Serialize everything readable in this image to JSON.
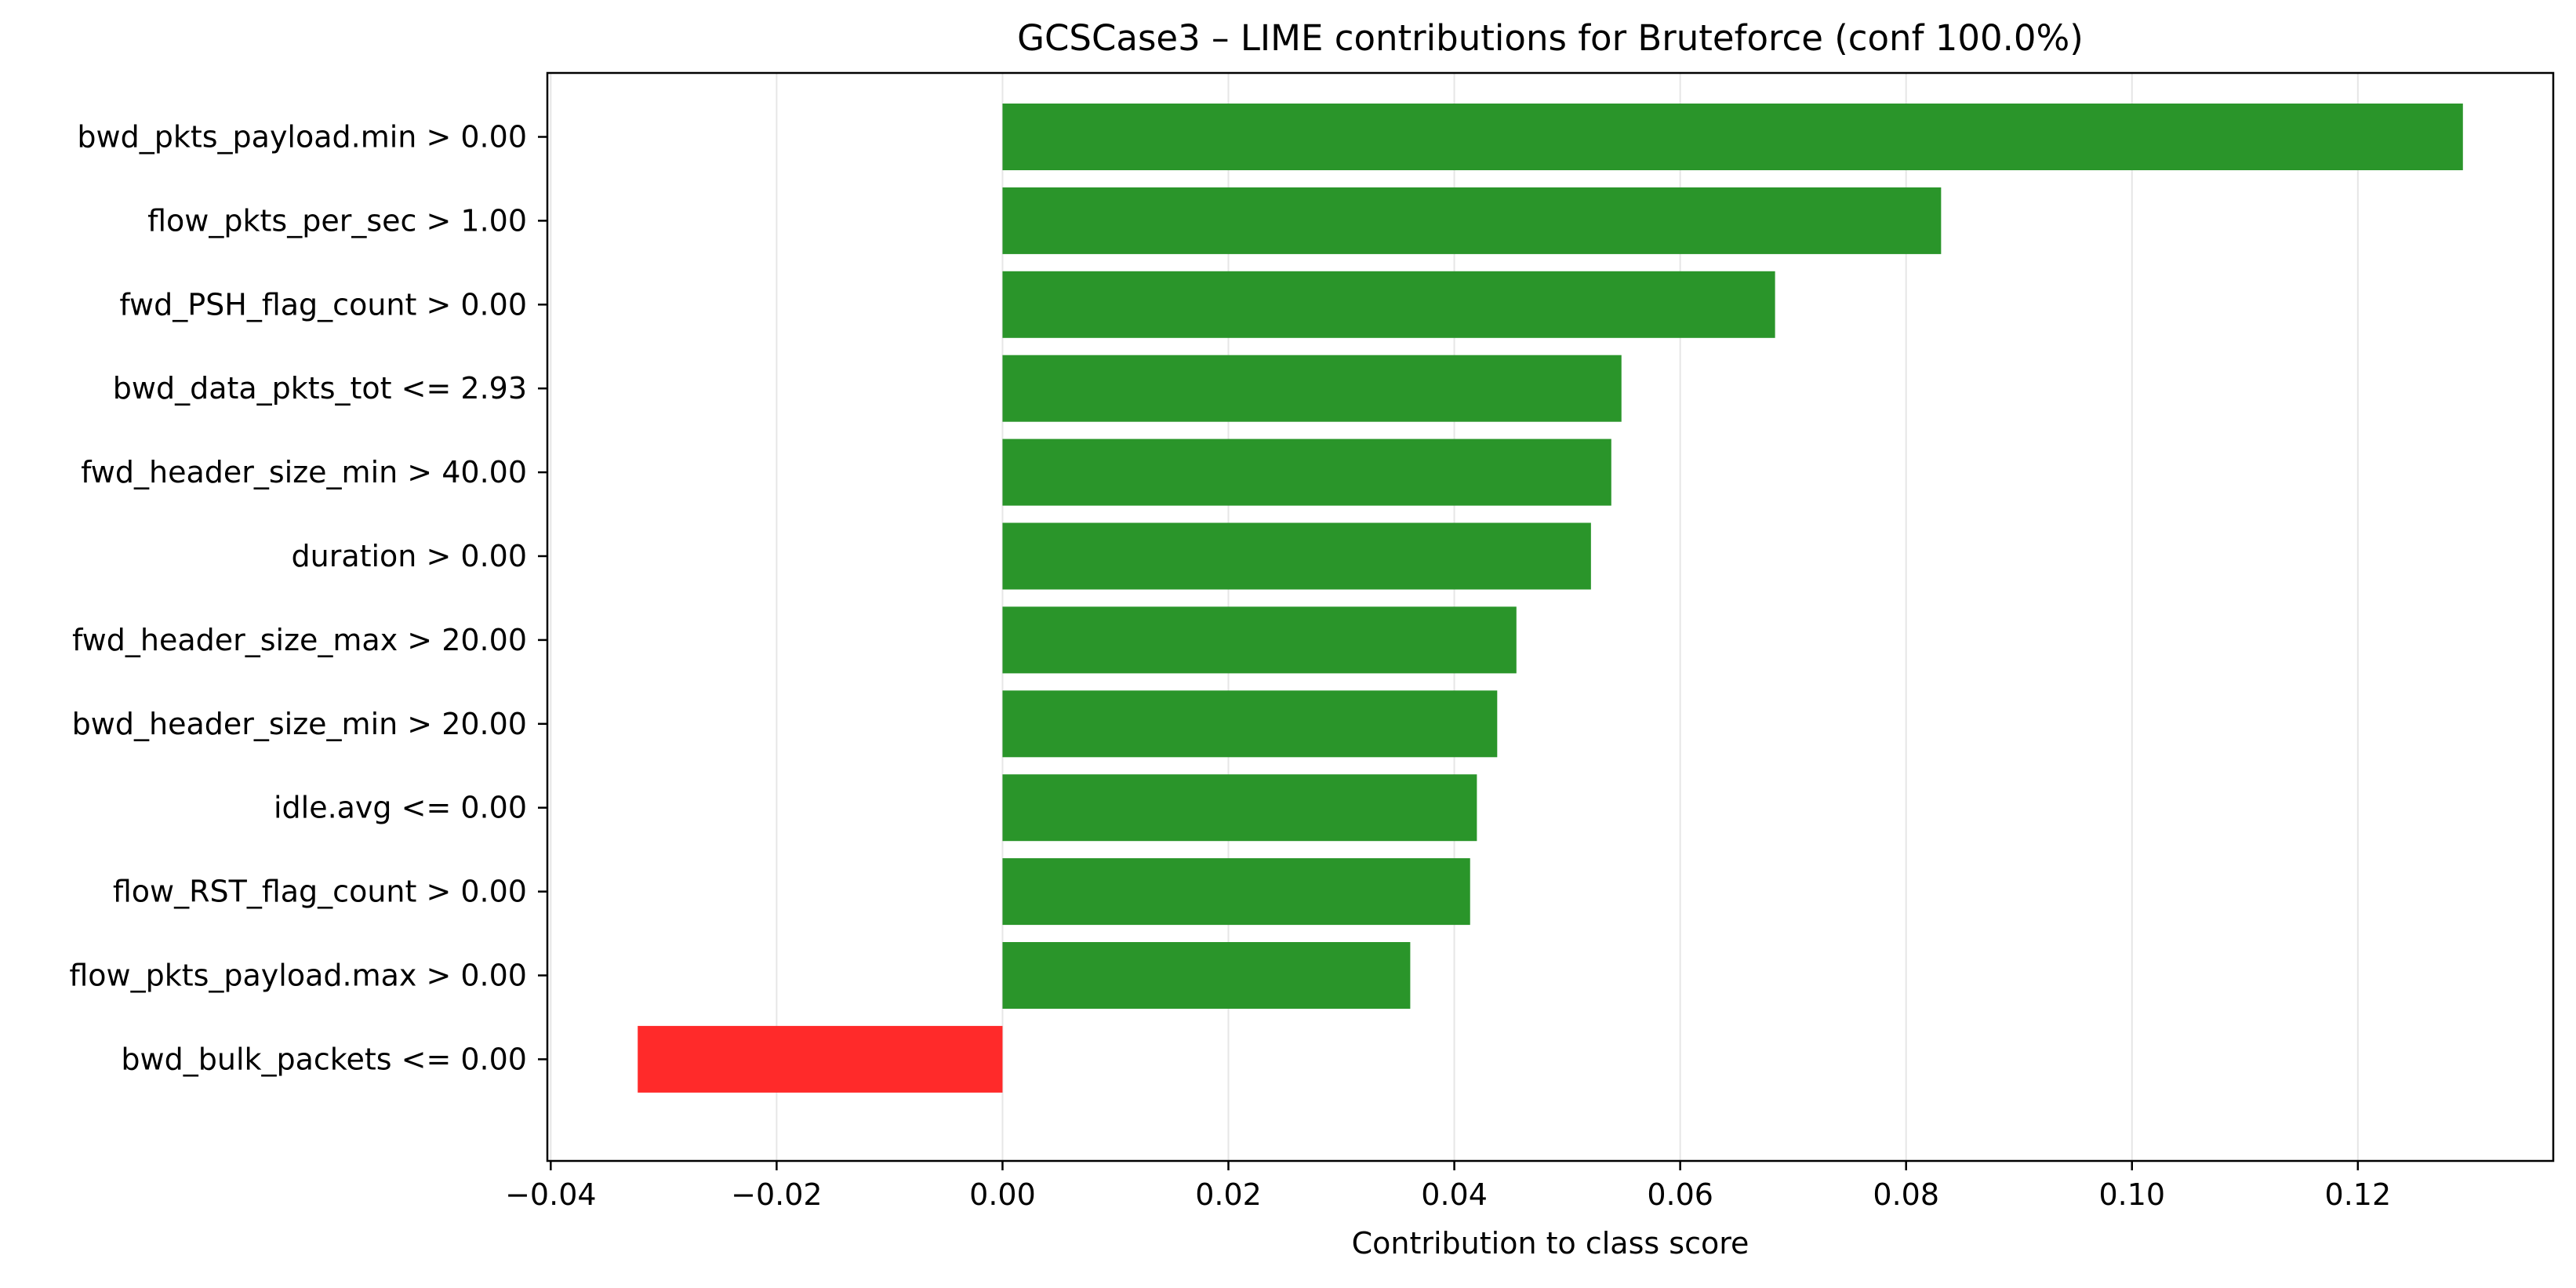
{
  "chart_data": {
    "type": "bar",
    "orientation": "horizontal",
    "title": "GCSCase3 – LIME contributions for Bruteforce (conf 100.0%)",
    "xlabel": "Contribution to class score",
    "ylabel": "",
    "categories": [
      "bwd_pkts_payload.min > 0.00",
      "flow_pkts_per_sec > 1.00",
      "fwd_PSH_flag_count > 0.00",
      "bwd_data_pkts_tot <= 2.93",
      "fwd_header_size_min > 40.00",
      "duration > 0.00",
      "fwd_header_size_max > 20.00",
      "bwd_header_size_min > 20.00",
      "idle.avg <= 0.00",
      "flow_RST_flag_count > 0.00",
      "flow_pkts_payload.max > 0.00",
      "bwd_bulk_packets <= 0.00"
    ],
    "values": [
      0.1293,
      0.0831,
      0.0684,
      0.0548,
      0.0539,
      0.0521,
      0.0455,
      0.0438,
      0.042,
      0.0414,
      0.0361,
      -0.0323
    ],
    "xlim": [
      -0.0403,
      0.1373
    ],
    "xticks": [
      -0.04,
      -0.02,
      0.0,
      0.02,
      0.04,
      0.06,
      0.08,
      0.1,
      0.12
    ],
    "xtick_labels": [
      "−0.04",
      "−0.02",
      "0.00",
      "0.02",
      "0.04",
      "0.06",
      "0.08",
      "0.10",
      "0.12"
    ],
    "grid": "vertical",
    "colors": {
      "positive": "#2a952a",
      "negative": "#ff2a2a",
      "grid": "#e6e6e6",
      "axis": "#000000"
    }
  }
}
